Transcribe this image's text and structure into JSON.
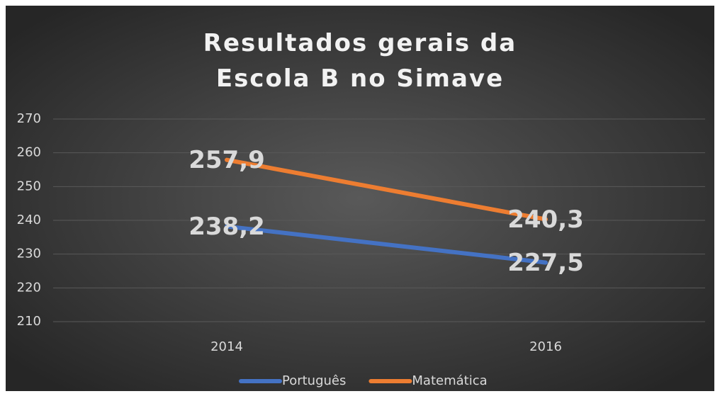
{
  "chart_data": {
    "type": "line",
    "title": "Resultados gerais da Escola B no Simave",
    "categories": [
      "2014",
      "2016"
    ],
    "series": [
      {
        "name": "Português",
        "color": "#4472c4",
        "values": [
          238.2,
          227.5
        ],
        "value_labels": [
          "238,2",
          "227,5"
        ]
      },
      {
        "name": "Matemática",
        "color": "#ed7d31",
        "values": [
          257.9,
          240.3
        ],
        "value_labels": [
          "257,9",
          "240,3"
        ]
      }
    ],
    "ylim": [
      210,
      270
    ],
    "yticks": [
      210,
      220,
      230,
      240,
      250,
      260,
      270
    ],
    "grid": true,
    "legend": "bottom"
  }
}
